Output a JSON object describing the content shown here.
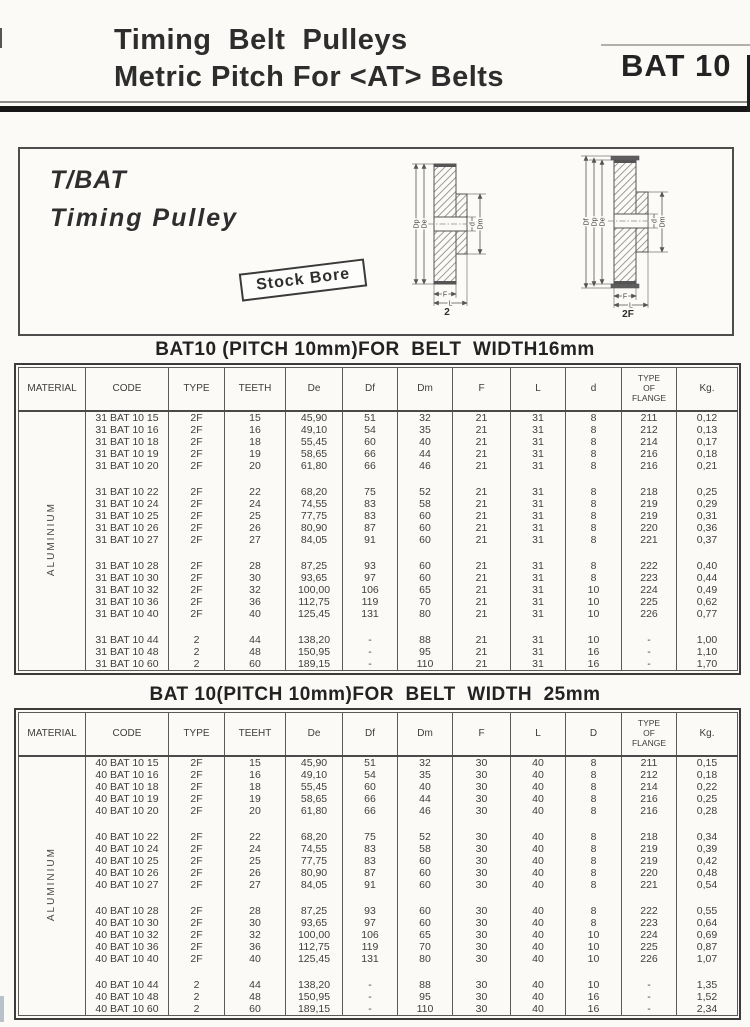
{
  "header": {
    "title_line1": "Timing  Belt  Pulleys",
    "title_line2": "Metric Pitch For <AT> Belts",
    "model": "BAT 10"
  },
  "intro": {
    "series": "T/BAT",
    "series_sub": "Timing Pulley",
    "stock_bore_label": "Stock Bore"
  },
  "diagram_left": {
    "caption": "2",
    "labels": {
      "dp": "Dp",
      "de": "De",
      "d": "d",
      "dm": "Dm",
      "f": "F",
      "l": "L"
    }
  },
  "diagram_right": {
    "caption": "2F",
    "labels": {
      "df": "Df",
      "dp": "Dp",
      "de": "De",
      "d": "d",
      "dm": "Dm",
      "f": "F",
      "l": "L"
    }
  },
  "table1": {
    "title": "BAT10 (PITCH 10mm)FOR  BELT  WIDTH16mm",
    "material": "ALUMINIUM",
    "headers": {
      "material": "MATERIAL",
      "code": "CODE",
      "type": "TYPE",
      "teeth": "TEETH",
      "de": "De",
      "df": "Df",
      "dm": "Dm",
      "f": "F",
      "l": "L",
      "d": "d",
      "flange": "TYPE\nOF\nFLANGE",
      "kg": "Kg."
    },
    "groups": [
      [
        [
          "31 BAT 10 15",
          "2F",
          "15",
          "45,90",
          "51",
          "32",
          "21",
          "31",
          "8",
          "211",
          "0,12"
        ],
        [
          "31 BAT 10 16",
          "2F",
          "16",
          "49,10",
          "54",
          "35",
          "21",
          "31",
          "8",
          "212",
          "0,13"
        ],
        [
          "31 BAT 10 18",
          "2F",
          "18",
          "55,45",
          "60",
          "40",
          "21",
          "31",
          "8",
          "214",
          "0,17"
        ],
        [
          "31 BAT 10 19",
          "2F",
          "19",
          "58,65",
          "66",
          "44",
          "21",
          "31",
          "8",
          "216",
          "0,18"
        ],
        [
          "31 BAT 10 20",
          "2F",
          "20",
          "61,80",
          "66",
          "46",
          "21",
          "31",
          "8",
          "216",
          "0,21"
        ]
      ],
      [
        [
          "31 BAT 10 22",
          "2F",
          "22",
          "68,20",
          "75",
          "52",
          "21",
          "31",
          "8",
          "218",
          "0,25"
        ],
        [
          "31 BAT 10 24",
          "2F",
          "24",
          "74,55",
          "83",
          "58",
          "21",
          "31",
          "8",
          "219",
          "0,29"
        ],
        [
          "31 BAT 10 25",
          "2F",
          "25",
          "77,75",
          "83",
          "60",
          "21",
          "31",
          "8",
          "219",
          "0,31"
        ],
        [
          "31 BAT 10 26",
          "2F",
          "26",
          "80,90",
          "87",
          "60",
          "21",
          "31",
          "8",
          "220",
          "0,36"
        ],
        [
          "31 BAT 10 27",
          "2F",
          "27",
          "84,05",
          "91",
          "60",
          "21",
          "31",
          "8",
          "221",
          "0,37"
        ]
      ],
      [
        [
          "31 BAT 10 28",
          "2F",
          "28",
          "87,25",
          "93",
          "60",
          "21",
          "31",
          "8",
          "222",
          "0,40"
        ],
        [
          "31 BAT 10 30",
          "2F",
          "30",
          "93,65",
          "97",
          "60",
          "21",
          "31",
          "8",
          "223",
          "0,44"
        ],
        [
          "31 BAT 10 32",
          "2F",
          "32",
          "100,00",
          "106",
          "65",
          "21",
          "31",
          "10",
          "224",
          "0,49"
        ],
        [
          "31 BAT 10 36",
          "2F",
          "36",
          "112,75",
          "119",
          "70",
          "21",
          "31",
          "10",
          "225",
          "0,62"
        ],
        [
          "31 BAT 10 40",
          "2F",
          "40",
          "125,45",
          "131",
          "80",
          "21",
          "31",
          "10",
          "226",
          "0,77"
        ]
      ],
      [
        [
          "31 BAT 10 44",
          "2",
          "44",
          "138,20",
          "-",
          "88",
          "21",
          "31",
          "10",
          "-",
          "1,00"
        ],
        [
          "31 BAT 10 48",
          "2",
          "48",
          "150,95",
          "-",
          "95",
          "21",
          "31",
          "16",
          "-",
          "1,10"
        ],
        [
          "31 BAT 10 60",
          "2",
          "60",
          "189,15",
          "-",
          "110",
          "21",
          "31",
          "16",
          "-",
          "1,70"
        ]
      ]
    ]
  },
  "table2": {
    "title": "BAT 10(PITCH 10mm)FOR  BELT  WIDTH  25mm",
    "material": "ALUMINIUM",
    "headers": {
      "material": "MATERIAL",
      "code": "CODE",
      "type": "TYPE",
      "teeth": "TEEHT",
      "de": "De",
      "df": "Df",
      "dm": "Dm",
      "f": "F",
      "l": "L",
      "d": "D",
      "flange": "TYPE\nOF\nFLANGE",
      "kg": "Kg."
    },
    "groups": [
      [
        [
          "40 BAT 10 15",
          "2F",
          "15",
          "45,90",
          "51",
          "32",
          "30",
          "40",
          "8",
          "211",
          "0,15"
        ],
        [
          "40 BAT 10 16",
          "2F",
          "16",
          "49,10",
          "54",
          "35",
          "30",
          "40",
          "8",
          "212",
          "0,18"
        ],
        [
          "40 BAT 10 18",
          "2F",
          "18",
          "55,45",
          "60",
          "40",
          "30",
          "40",
          "8",
          "214",
          "0,22"
        ],
        [
          "40 BAT 10 19",
          "2F",
          "19",
          "58,65",
          "66",
          "44",
          "30",
          "40",
          "8",
          "216",
          "0,25"
        ],
        [
          "40 BAT 10 20",
          "2F",
          "20",
          "61,80",
          "66",
          "46",
          "30",
          "40",
          "8",
          "216",
          "0,28"
        ]
      ],
      [
        [
          "40 BAT 10 22",
          "2F",
          "22",
          "68,20",
          "75",
          "52",
          "30",
          "40",
          "8",
          "218",
          "0,34"
        ],
        [
          "40 BAT 10 24",
          "2F",
          "24",
          "74,55",
          "83",
          "58",
          "30",
          "40",
          "8",
          "219",
          "0,39"
        ],
        [
          "40 BAT 10 25",
          "2F",
          "25",
          "77,75",
          "83",
          "60",
          "30",
          "40",
          "8",
          "219",
          "0,42"
        ],
        [
          "40 BAT 10 26",
          "2F",
          "26",
          "80,90",
          "87",
          "60",
          "30",
          "40",
          "8",
          "220",
          "0,48"
        ],
        [
          "40 BAT 10 27",
          "2F",
          "27",
          "84,05",
          "91",
          "60",
          "30",
          "40",
          "8",
          "221",
          "0,54"
        ]
      ],
      [
        [
          "40 BAT 10 28",
          "2F",
          "28",
          "87,25",
          "93",
          "60",
          "30",
          "40",
          "8",
          "222",
          "0,55"
        ],
        [
          "40 BAT 10 30",
          "2F",
          "30",
          "93,65",
          "97",
          "60",
          "30",
          "40",
          "8",
          "223",
          "0,64"
        ],
        [
          "40 BAT 10 32",
          "2F",
          "32",
          "100,00",
          "106",
          "65",
          "30",
          "40",
          "10",
          "224",
          "0,69"
        ],
        [
          "40 BAT 10 36",
          "2F",
          "36",
          "112,75",
          "119",
          "70",
          "30",
          "40",
          "10",
          "225",
          "0,87"
        ],
        [
          "40 BAT 10 40",
          "2F",
          "40",
          "125,45",
          "131",
          "80",
          "30",
          "40",
          "10",
          "226",
          "1,07"
        ]
      ],
      [
        [
          "40 BAT 10 44",
          "2",
          "44",
          "138,20",
          "-",
          "88",
          "30",
          "40",
          "10",
          "-",
          "1,35"
        ],
        [
          "40 BAT 10 48",
          "2",
          "48",
          "150,95",
          "-",
          "95",
          "30",
          "40",
          "16",
          "-",
          "1,52"
        ],
        [
          "40 BAT 10 60",
          "2",
          "60",
          "189,15",
          "-",
          "110",
          "30",
          "40",
          "16",
          "-",
          "2,34"
        ]
      ]
    ]
  }
}
